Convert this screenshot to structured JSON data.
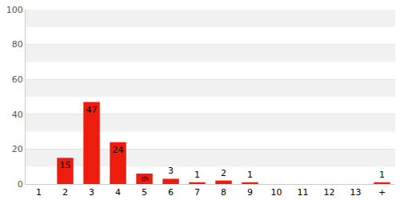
{
  "chart_data": {
    "type": "bar",
    "categories": [
      "1",
      "2",
      "3",
      "4",
      "5",
      "6",
      "7",
      "8",
      "9",
      "10",
      "11",
      "12",
      "13",
      "+"
    ],
    "values": [
      null,
      15,
      47,
      24,
      6,
      3,
      1,
      2,
      1,
      null,
      null,
      null,
      null,
      1
    ],
    "color": "#ee1c0e",
    "ylim": [
      0,
      100
    ],
    "yticks": [
      0,
      20,
      40,
      60,
      80,
      100
    ],
    "grid": true,
    "data_labels": true
  }
}
